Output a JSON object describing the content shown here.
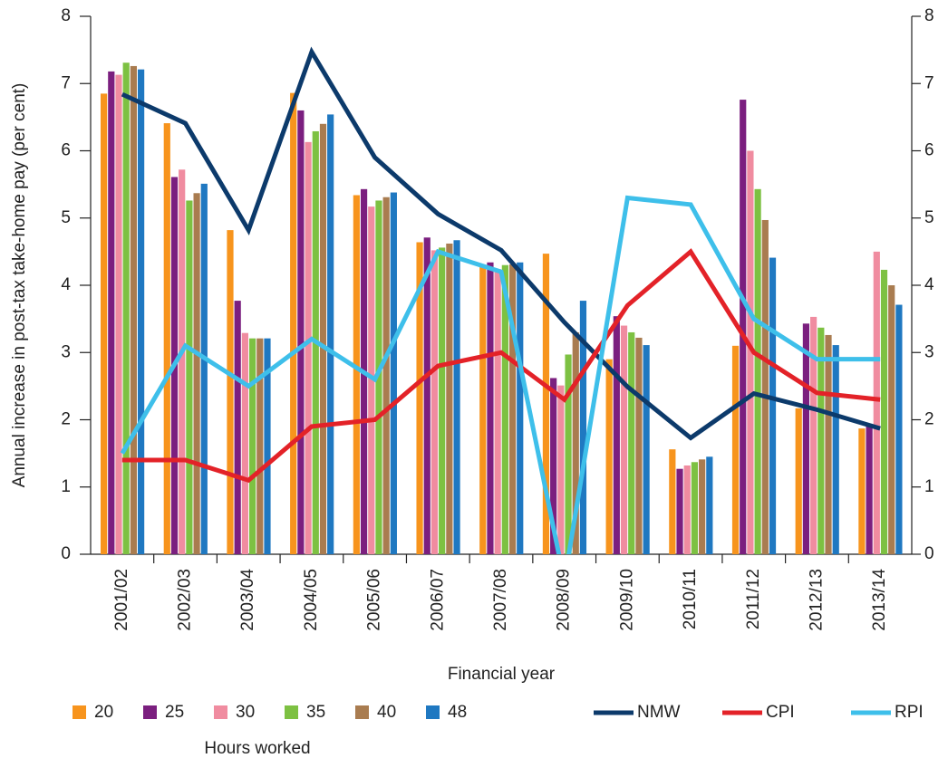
{
  "chart_data": {
    "type": "bar",
    "x_label": "Financial year",
    "y_label": "Annual increase in post-tax take-home pay (per cent)",
    "legend_title": "Hours worked",
    "legend_position": "bottom",
    "categories": [
      "2001/02",
      "2002/03",
      "2003/04",
      "2004/05",
      "2005/06",
      "2006/07",
      "2007/08",
      "2008/09",
      "2009/10",
      "2010/11",
      "2011/12",
      "2012/13",
      "2013/14"
    ],
    "ylim": [
      0,
      8
    ],
    "yticks": [
      0,
      1,
      2,
      3,
      4,
      5,
      6,
      7,
      8
    ],
    "y2lim": [
      0,
      8
    ],
    "y2ticks": [
      0,
      1,
      2,
      3,
      4,
      5,
      6,
      7,
      8
    ],
    "series": [
      {
        "name": "20",
        "type": "bar",
        "color": "#f7941d",
        "values": [
          6.85,
          6.41,
          4.82,
          6.86,
          5.34,
          4.64,
          4.27,
          4.47,
          2.9,
          1.56,
          3.1,
          2.17,
          1.87
        ]
      },
      {
        "name": "25",
        "type": "bar",
        "color": "#7b1f7f",
        "values": [
          7.18,
          5.61,
          3.77,
          6.6,
          5.43,
          4.71,
          4.34,
          2.62,
          3.54,
          1.27,
          6.76,
          3.43,
          1.9
        ]
      },
      {
        "name": "30",
        "type": "bar",
        "color": "#f08ca0",
        "values": [
          7.13,
          5.72,
          3.29,
          6.13,
          5.17,
          4.52,
          4.24,
          2.51,
          3.4,
          1.32,
          6.0,
          3.53,
          4.5
        ]
      },
      {
        "name": "35",
        "type": "bar",
        "color": "#7dc142",
        "values": [
          7.31,
          5.26,
          3.21,
          6.29,
          5.26,
          4.56,
          4.3,
          2.97,
          3.3,
          1.37,
          5.43,
          3.37,
          4.23
        ]
      },
      {
        "name": "40",
        "type": "bar",
        "color": "#a97c50",
        "values": [
          7.26,
          5.37,
          3.21,
          6.4,
          5.31,
          4.62,
          4.31,
          3.3,
          3.22,
          1.41,
          4.97,
          3.26,
          4.0
        ]
      },
      {
        "name": "48",
        "type": "bar",
        "color": "#1f78c1",
        "values": [
          7.21,
          5.51,
          3.21,
          6.54,
          5.38,
          4.67,
          4.34,
          3.77,
          3.11,
          1.45,
          4.41,
          3.11,
          3.71
        ]
      },
      {
        "name": "NMW",
        "type": "line",
        "color": "#0c3a6b",
        "values": [
          6.84,
          6.41,
          4.82,
          7.47,
          5.9,
          5.06,
          4.52,
          3.45,
          2.49,
          1.73,
          2.39,
          2.15,
          1.87
        ]
      },
      {
        "name": "CPI",
        "type": "line",
        "color": "#e32228",
        "values": [
          1.4,
          1.4,
          1.1,
          1.9,
          2.0,
          2.8,
          3.0,
          2.3,
          3.7,
          4.5,
          3.0,
          2.4,
          2.3
        ]
      },
      {
        "name": "RPI",
        "type": "line",
        "color": "#3ebfea",
        "values": [
          1.5,
          3.1,
          2.5,
          3.2,
          2.6,
          4.5,
          4.2,
          -0.4,
          5.3,
          5.2,
          3.5,
          2.9,
          2.9
        ]
      }
    ]
  }
}
